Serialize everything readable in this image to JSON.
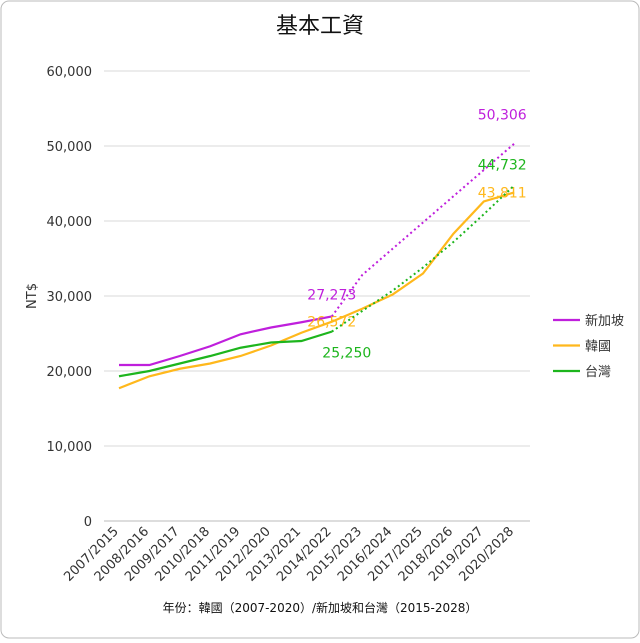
{
  "chart_data": {
    "type": "line",
    "title": "基本工資",
    "x_label": "年份：韓國（2007-2020）/新加坡和台灣（2015-2028）",
    "y_label": "NT$",
    "categories": [
      "2007/2015",
      "2008/2016",
      "2009/2017",
      "2010/2018",
      "2011/2019",
      "2012/2020",
      "2013/2021",
      "2014/2022",
      "2015/2023",
      "2016/2024",
      "2017/2025",
      "2018/2026",
      "2019/2027",
      "2020/2028"
    ],
    "ylim": [
      0,
      60000
    ],
    "yticks": [
      0,
      {
        "value": 10000,
        "label": "10,000"
      },
      {
        "value": 20000,
        "label": "20,000"
      },
      {
        "value": 30000,
        "label": "30,000"
      },
      {
        "value": 40000,
        "label": "40,000"
      },
      {
        "value": 50000,
        "label": "50,000"
      },
      {
        "value": 60000,
        "label": "60,000"
      }
    ],
    "grid": true,
    "legend": "right",
    "series": [
      {
        "name": "新加坡",
        "color": "#bf1fdc",
        "values": [
          20800,
          20800,
          22000,
          23300,
          24900,
          25800,
          26500,
          27273,
          null,
          null,
          null,
          null,
          null,
          null
        ],
        "value_labels": [
          null,
          null,
          null,
          null,
          null,
          null,
          null,
          "27,273",
          null,
          null,
          null,
          null,
          null,
          null
        ]
      },
      {
        "name": "韓國",
        "color": "#ffb81c",
        "values": [
          17700,
          19300,
          20300,
          21000,
          22000,
          23400,
          25100,
          26572,
          28300,
          30200,
          33000,
          38300,
          42600,
          43811
        ],
        "value_labels": [
          null,
          null,
          null,
          null,
          null,
          null,
          null,
          "26,572",
          null,
          null,
          null,
          null,
          null,
          "43,811"
        ]
      },
      {
        "name": "台灣",
        "color": "#1db51d",
        "values": [
          19300,
          20000,
          21000,
          22000,
          23100,
          23800,
          24000,
          25250,
          null,
          null,
          null,
          null,
          null,
          null
        ],
        "value_labels": [
          null,
          null,
          null,
          null,
          null,
          null,
          null,
          "25,250",
          null,
          null,
          null,
          null,
          null,
          null
        ]
      },
      {
        "color": "#bf1fdc",
        "dash": true,
        "values": [
          null,
          null,
          null,
          null,
          null,
          null,
          null,
          27273,
          32800,
          36300,
          39800,
          43300,
          46800,
          50306
        ],
        "value_labels": [
          null,
          null,
          null,
          null,
          null,
          null,
          null,
          null,
          null,
          null,
          null,
          null,
          null,
          "50,306"
        ]
      },
      {
        "color": "#1db51d",
        "dash": true,
        "values": [
          null,
          null,
          null,
          null,
          null,
          null,
          null,
          25250,
          28000,
          30700,
          33800,
          37200,
          40900,
          44732
        ],
        "value_labels": [
          null,
          null,
          null,
          null,
          null,
          null,
          null,
          null,
          null,
          null,
          null,
          null,
          null,
          "44,732"
        ]
      }
    ]
  }
}
